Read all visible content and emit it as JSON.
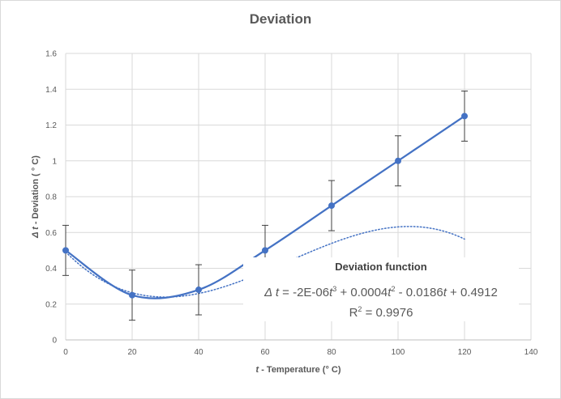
{
  "chart_data": {
    "type": "scatter",
    "title": "Deviation",
    "xlabel": "t - Temperature (° C)",
    "ylabel": "Δ t - Deviation ( ° C)",
    "xlim": [
      0,
      140
    ],
    "ylim": [
      0,
      1.6
    ],
    "x_ticks": [
      0,
      20,
      40,
      60,
      80,
      100,
      120,
      140
    ],
    "y_ticks": [
      0,
      0.2,
      0.4,
      0.6,
      0.8,
      1,
      1.2,
      1.4,
      1.6
    ],
    "grid": true,
    "series": [
      {
        "x": [
          0,
          20,
          40,
          60,
          80,
          100,
          120
        ],
        "y": [
          0.5,
          0.25,
          0.28,
          0.5,
          0.75,
          1.0,
          1.25
        ],
        "error": 0.14,
        "line": "smooth",
        "marker": "circle",
        "color": "#4472c4"
      }
    ],
    "trendline": {
      "type": "polynomial",
      "order": 3,
      "coefficients": [
        -2e-06,
        0.0004,
        -0.0186,
        0.4912
      ],
      "style": "dotted",
      "color": "#4472c4"
    },
    "annotation": {
      "title": "Deviation function",
      "equation": {
        "lhs": "Δ t",
        "text1": " = -2E-06",
        "var1": "t",
        "sup1": "3",
        "text2": " + 0.0004",
        "var2": "t",
        "sup2": "2",
        "text3": " - 0.0186",
        "var3": "t",
        "text4": " + 0.4912"
      },
      "r2_label": "R",
      "r2_sup": "2",
      "r2_value": " = 0.9976"
    }
  }
}
